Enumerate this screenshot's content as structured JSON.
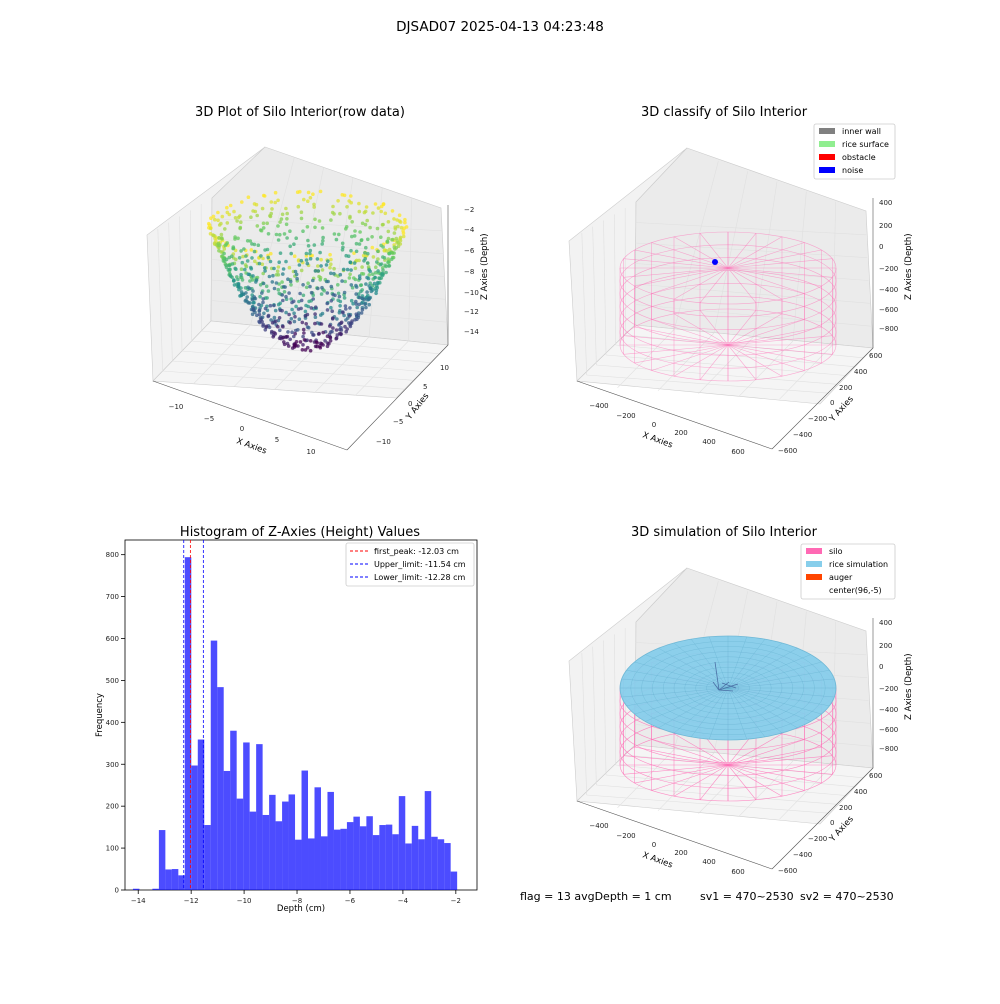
{
  "figure": {
    "title": "DJSAD07 2025-04-13 04:23:48"
  },
  "panel1": {
    "title": "3D Plot of Silo Interior(row data)",
    "xlabel": "X Axies",
    "ylabel": "Y Axies",
    "zlabel": "Z Axies (Depth)",
    "xticks": [
      "−10",
      "−5",
      "0",
      "5",
      "10"
    ],
    "yticks": [
      "−10",
      "−5",
      "0",
      "5",
      "10"
    ],
    "zticks": [
      "−2",
      "−4",
      "−6",
      "−8",
      "−10",
      "−12",
      "−14"
    ]
  },
  "panel2": {
    "title": "3D classify of Silo Interior",
    "xlabel": "X Axies",
    "ylabel": "Y Axies",
    "zlabel": "Z Axies (Depth)",
    "xticks": [
      "−400",
      "−200",
      "0",
      "200",
      "400",
      "600"
    ],
    "yticks": [
      "−600",
      "−400",
      "−200",
      "0",
      "200",
      "400",
      "600"
    ],
    "zticks": [
      "400",
      "200",
      "0",
      "−200",
      "−400",
      "−600",
      "−800"
    ],
    "legend": [
      {
        "label": "inner wall",
        "color": "#808080"
      },
      {
        "label": "rice surface",
        "color": "#90ee90"
      },
      {
        "label": "obstacle",
        "color": "#ff0000"
      },
      {
        "label": "noise",
        "color": "#0000ff"
      }
    ]
  },
  "panel4": {
    "title": "3D simulation of Silo Interior",
    "xlabel": "X Axies",
    "ylabel": "Y Axies",
    "zlabel": "Z Axies (Depth)",
    "xticks": [
      "−400",
      "−200",
      "0",
      "200",
      "400",
      "600"
    ],
    "yticks": [
      "−600",
      "−400",
      "−200",
      "0",
      "200",
      "400",
      "600"
    ],
    "zticks": [
      "400",
      "200",
      "0",
      "−200",
      "−400",
      "−600",
      "−800"
    ],
    "legend": [
      {
        "label": "silo",
        "color": "#ff69b4"
      },
      {
        "label": "rice simulation",
        "color": "#87ceeb"
      },
      {
        "label": "auger",
        "color": "#ff4500"
      },
      {
        "label": "center(96,-5)",
        "color": ""
      }
    ]
  },
  "status": {
    "text1": "flag = 13   avgDepth = 1 cm",
    "text2": "sv1 = 470~2530",
    "text3": "sv2 = 470~2530"
  },
  "chart_data": [
    {
      "type": "histogram",
      "title": "Histogram of Z-Axies (Height) Values",
      "xlabel": "Depth (cm)",
      "ylabel": "Frequency",
      "xlim": [
        -14.5,
        -1.2
      ],
      "ylim": [
        0,
        835
      ],
      "xticks": [
        -14,
        -12,
        -10,
        -8,
        -6,
        -4,
        -2
      ],
      "yticks": [
        0,
        100,
        200,
        300,
        400,
        500,
        600,
        700,
        800
      ],
      "bin_start": -14.2,
      "bin_width": 0.245,
      "bar_color": "#0000ff",
      "values": [
        3,
        0,
        0,
        3,
        143,
        49,
        50,
        35,
        794,
        297,
        359,
        155,
        595,
        484,
        284,
        380,
        218,
        352,
        187,
        348,
        179,
        227,
        164,
        211,
        228,
        120,
        285,
        123,
        245,
        128,
        234,
        144,
        146,
        162,
        175,
        152,
        176,
        131,
        155,
        156,
        133,
        224,
        111,
        153,
        121,
        236,
        127,
        121,
        112,
        44
      ],
      "lines": [
        {
          "label": "first_peak: -12.03 cm",
          "x": -12.03,
          "color": "#ff0000"
        },
        {
          "label": "Upper_limit: -11.54 cm",
          "x": -11.54,
          "color": "#0000ff"
        },
        {
          "label": "Lower_limit: -12.28 cm",
          "x": -12.28,
          "color": "#0000ff"
        }
      ]
    }
  ]
}
